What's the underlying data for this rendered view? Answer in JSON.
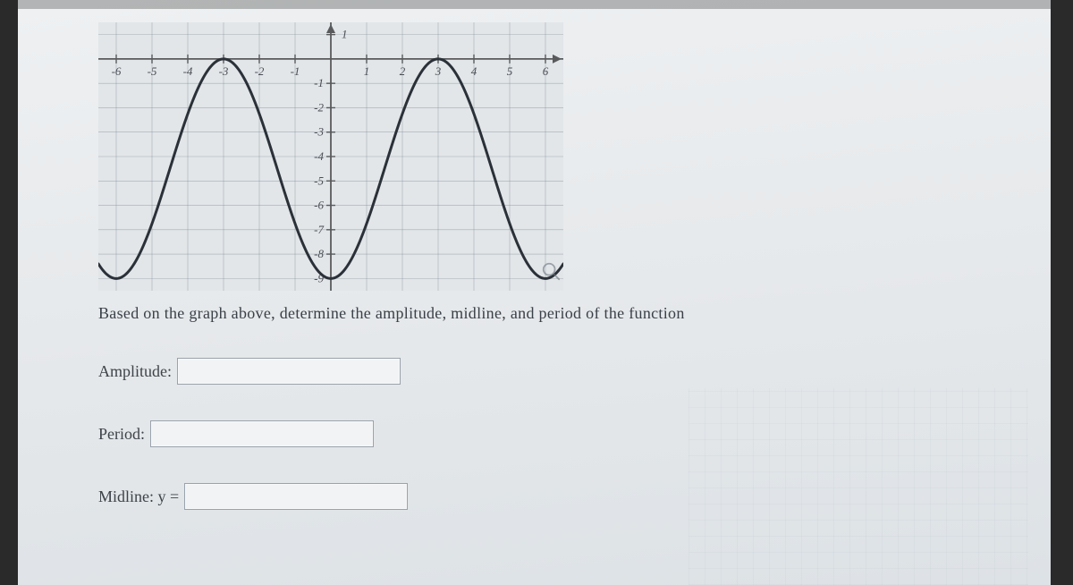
{
  "chart": {
    "type": "line",
    "xlim": [
      -6.5,
      6.5
    ],
    "ylim": [
      -9.5,
      1.5
    ],
    "xtick_step": 1,
    "ytick_step": 1,
    "x_tick_labels": [
      "-6",
      "-5",
      "-4",
      "-3",
      "-2",
      "-1",
      "",
      "1",
      "2",
      "3",
      "4",
      "5",
      "6"
    ],
    "y_tick_labels_pos": [
      "1"
    ],
    "y_tick_labels_neg": [
      "-1",
      "-2",
      "-3",
      "-4",
      "-5",
      "-6",
      "-7",
      "-8",
      "-9"
    ],
    "axis_color": "#585a5c",
    "grid_color": "#7d8791",
    "curve_color": "#2b3138",
    "curve_width": 3,
    "background_color": "#e2e6e9",
    "tick_fontsize": 13,
    "tick_color": "#4a4e55",
    "tick_font_style": "italic",
    "amplitude": 4.5,
    "midline": -4.5,
    "period": 6,
    "phase_at_x0": "trough"
  },
  "question_text": "Based on the graph above, determine the amplitude, midline, and period of the function",
  "fields": {
    "amplitude_label": "Amplitude:",
    "period_label": "Period:",
    "midline_label": "Midline: y =",
    "amplitude_value": "",
    "period_value": "",
    "midline_value": ""
  },
  "icon_names": {
    "magnify": "magnify-icon"
  }
}
